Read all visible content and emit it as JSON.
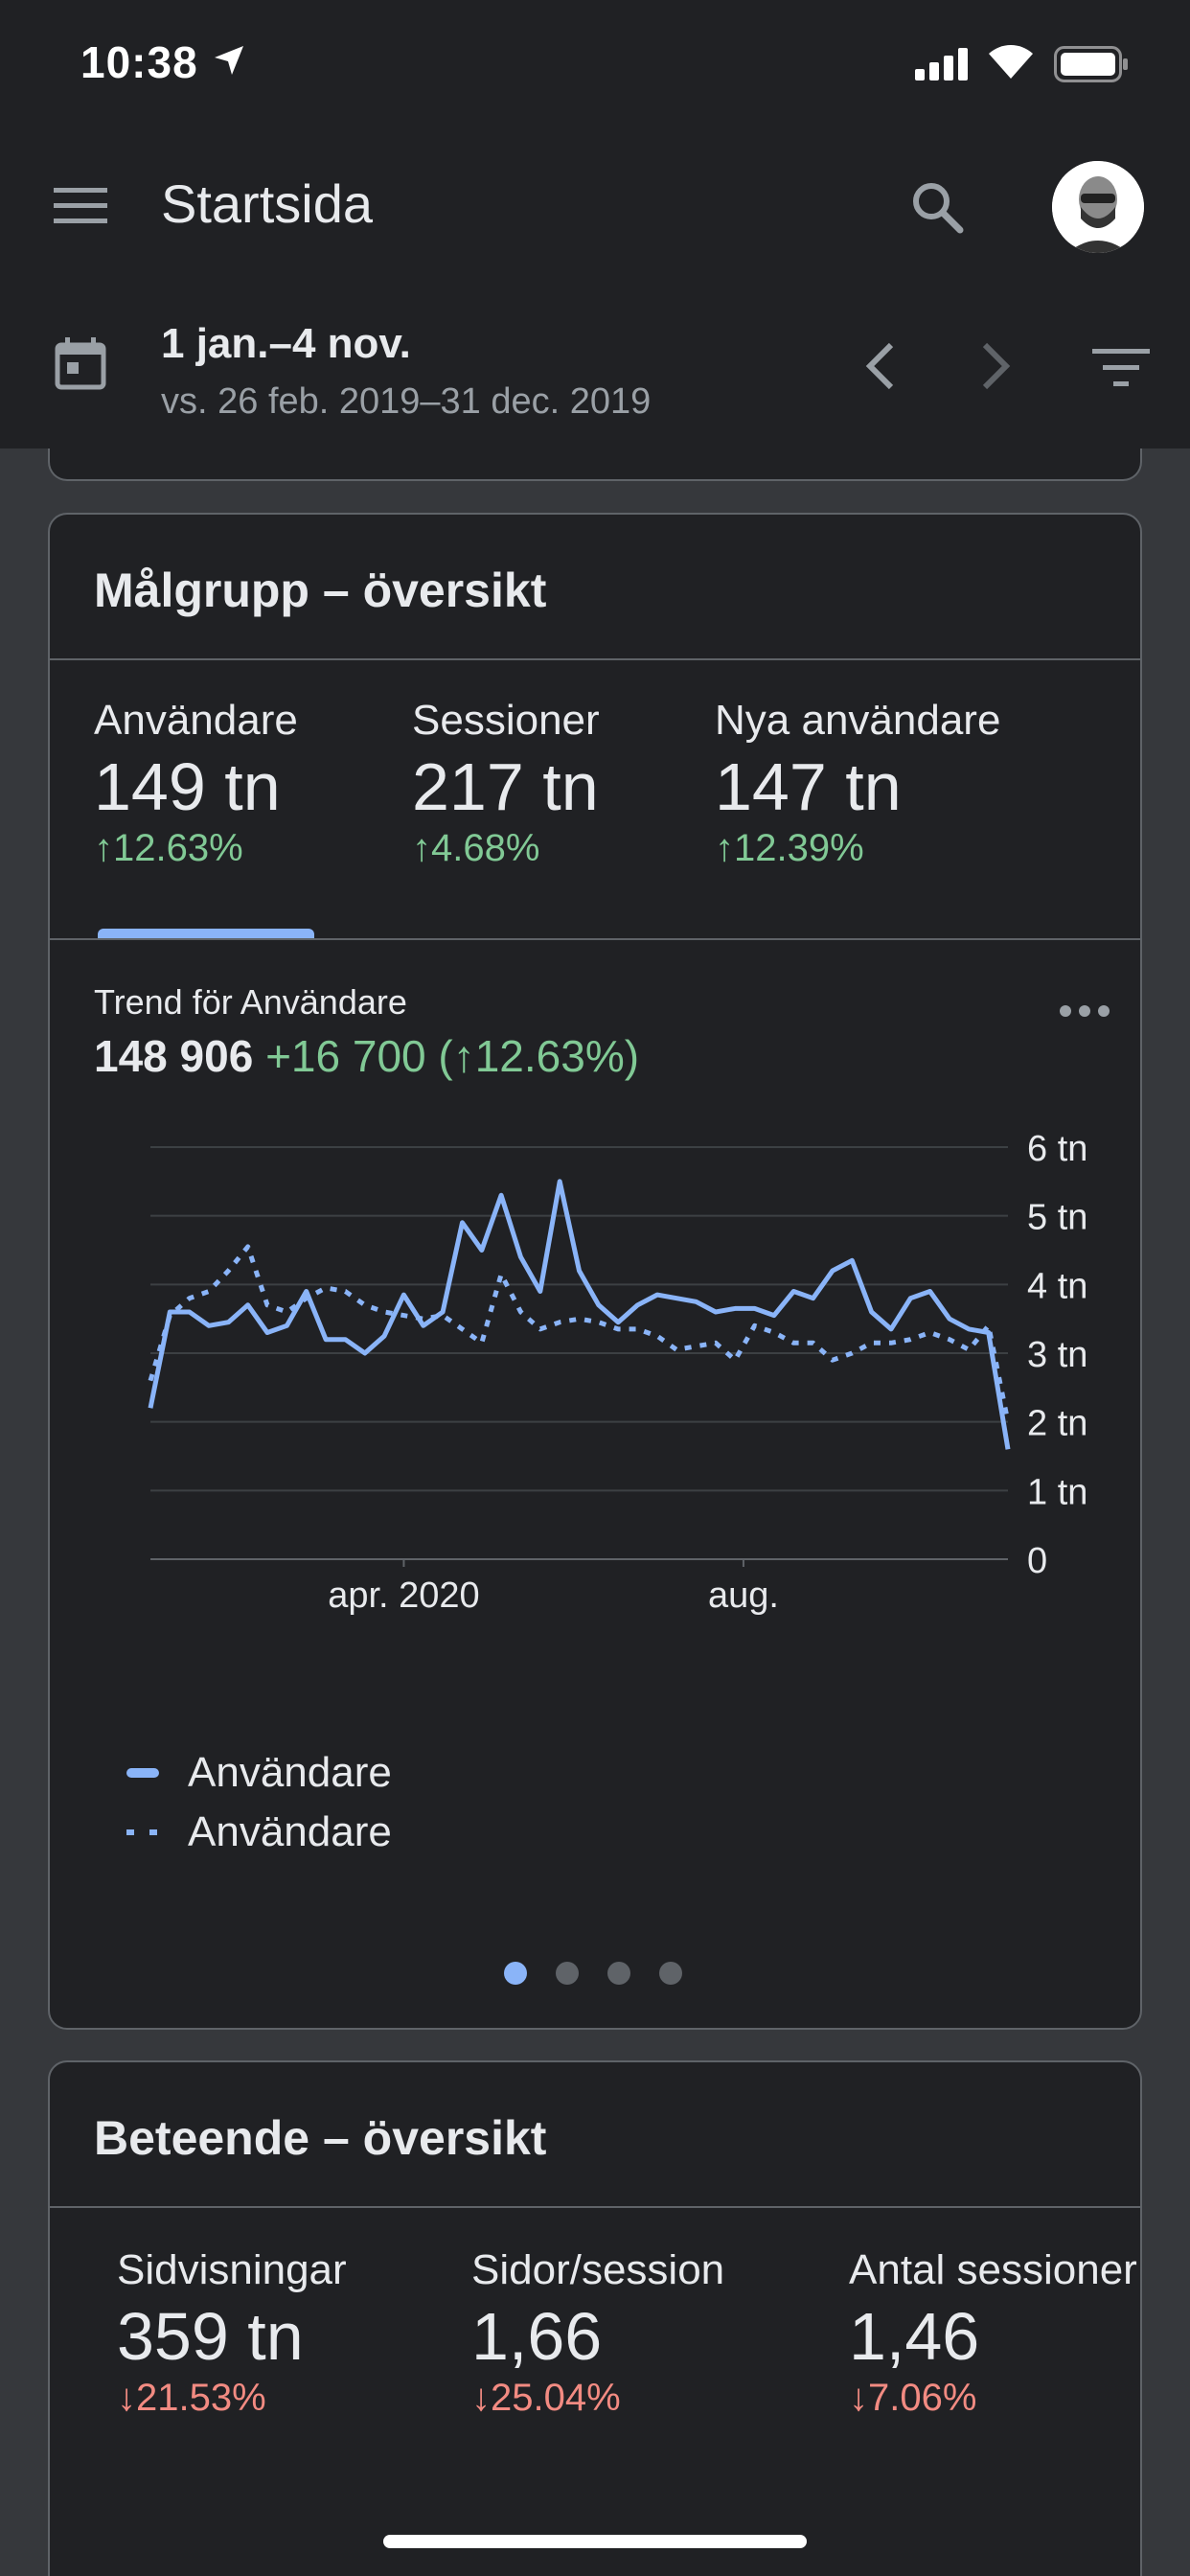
{
  "status_bar": {
    "time": "10:38"
  },
  "header": {
    "title": "Startsida"
  },
  "date_bar": {
    "range": "1 jan.–4 nov.",
    "compare": "vs. 26 feb. 2019–31 dec. 2019"
  },
  "audience": {
    "title": "Målgrupp – översikt",
    "metrics": [
      {
        "label": "Användare",
        "value": "149 tn",
        "change": "↑12.63%"
      },
      {
        "label": "Sessioner",
        "value": "217 tn",
        "change": "↑4.68%"
      },
      {
        "label": "Nya användare",
        "value": "147 tn",
        "change": "↑12.39%"
      }
    ],
    "trend_label": "Trend för Användare",
    "trend_total": "148 906",
    "trend_delta": "+16 700 (↑12.63%)",
    "pager": {
      "pages": 4,
      "active": 0
    }
  },
  "chart_data": {
    "type": "line",
    "title": "Trend för Användare",
    "ylim": [
      0,
      6
    ],
    "y_ticks": [
      "0",
      "1 tn",
      "2 tn",
      "3 tn",
      "4 tn",
      "5 tn",
      "6 tn"
    ],
    "x_ticks": [
      "apr. 2020",
      "aug."
    ],
    "y_unit": "tn",
    "grid": true,
    "legend_position": "bottom-left",
    "series": [
      {
        "name": "Användare",
        "style": "solid",
        "color": "#8ab4f8",
        "values": [
          2.2,
          3.6,
          3.6,
          3.4,
          3.45,
          3.7,
          3.3,
          3.4,
          3.9,
          3.2,
          3.2,
          3.0,
          3.25,
          3.85,
          3.4,
          3.6,
          4.9,
          4.5,
          5.3,
          4.4,
          3.9,
          5.5,
          4.2,
          3.7,
          3.45,
          3.7,
          3.85,
          3.8,
          3.75,
          3.6,
          3.65,
          3.65,
          3.55,
          3.9,
          3.8,
          4.2,
          4.35,
          3.6,
          3.35,
          3.8,
          3.9,
          3.5,
          3.35,
          3.3,
          1.6
        ]
      },
      {
        "name": "Användare",
        "style": "dotted",
        "color": "#8ab4f8",
        "values": [
          2.6,
          3.55,
          3.8,
          3.9,
          4.2,
          4.55,
          3.7,
          3.6,
          3.8,
          3.95,
          3.9,
          3.7,
          3.6,
          3.55,
          3.5,
          3.55,
          3.35,
          3.15,
          4.15,
          3.6,
          3.35,
          3.45,
          3.5,
          3.45,
          3.35,
          3.35,
          3.25,
          3.05,
          3.1,
          3.15,
          2.9,
          3.4,
          3.3,
          3.15,
          3.15,
          2.9,
          3.0,
          3.15,
          3.15,
          3.2,
          3.3,
          3.2,
          3.05,
          3.4,
          2.0
        ]
      }
    ]
  },
  "behavior": {
    "title": "Beteende – översikt",
    "metrics": [
      {
        "label": "Sidvisningar",
        "value": "359 tn",
        "change": "↓21.53%"
      },
      {
        "label": "Sidor/session",
        "value": "1,66",
        "change": "↓25.04%"
      },
      {
        "label": "Antal sessioner",
        "value": "1,46",
        "change": "↓7.06%"
      }
    ]
  },
  "colors": {
    "background": "#202124",
    "accent": "#8ab4f8",
    "positive": "#81c995",
    "negative": "#f28b82"
  },
  "icons": [
    "location-arrow-icon",
    "signal-icon",
    "wifi-icon",
    "battery-icon",
    "menu-icon",
    "search-icon",
    "calendar-icon",
    "chevron-left-icon",
    "chevron-right-icon",
    "filter-icon",
    "more-icon"
  ]
}
